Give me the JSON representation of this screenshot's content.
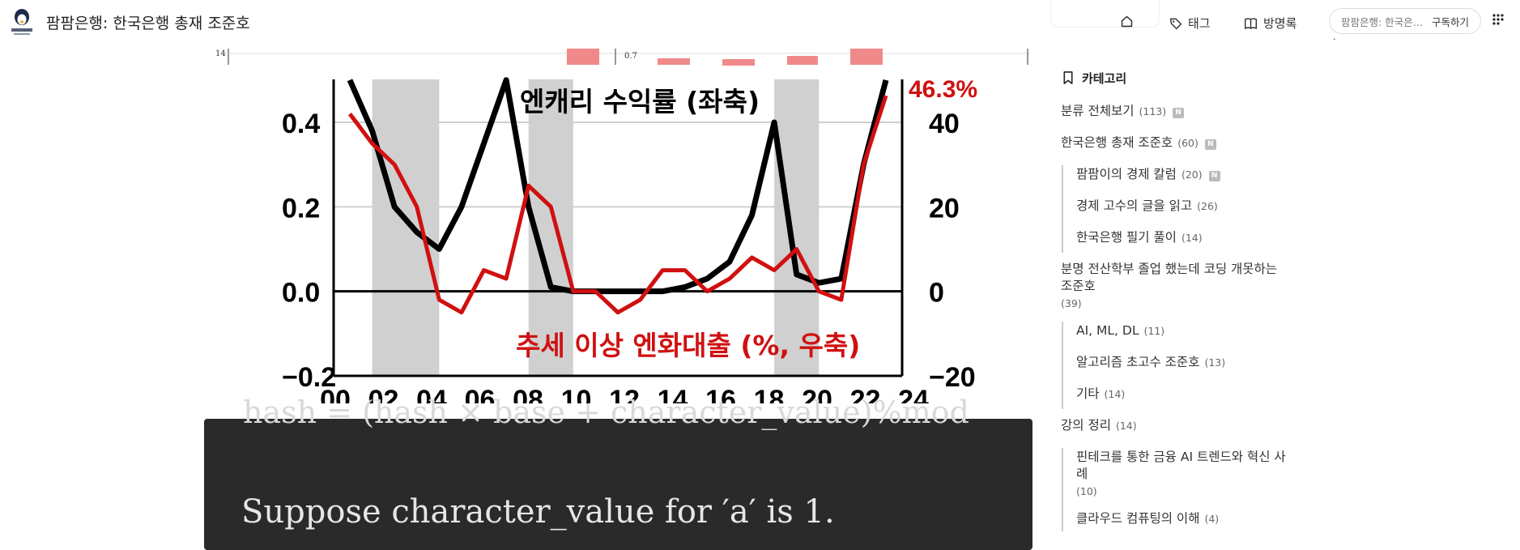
{
  "header": {
    "blog_title": "팜팜은행: 한국은행 총재 조준호",
    "nav": {
      "home_label": "",
      "tag_label": "태그",
      "guestbook_label": "방명록"
    },
    "subscribe": {
      "blog_name": "팜팜은행: 한국은행...",
      "button_label": "구독하기"
    },
    "cut_label": "."
  },
  "top_strip": {
    "tick_left": "14",
    "tick_mid": "0.7"
  },
  "chart": {
    "left_ticks": [
      "0.4",
      "0.2",
      "0.0",
      "−0.2"
    ],
    "right_ticks": [
      "40",
      "20",
      "0",
      "−20"
    ],
    "x_ticks": [
      "00",
      "02",
      "04",
      "06",
      "08",
      "10",
      "12",
      "14",
      "16",
      "18",
      "20",
      "22",
      "24"
    ],
    "label_black": "엔캐리 수익률 (좌축)",
    "label_red": "추세 이상 엔화대출 (%, 우축)",
    "value_annotation": "46.3%"
  },
  "chart_data": {
    "type": "line",
    "x": [
      "00",
      "01",
      "02",
      "03",
      "04",
      "05",
      "06",
      "07",
      "08",
      "09",
      "10",
      "11",
      "12",
      "13",
      "14",
      "15",
      "16",
      "17",
      "18",
      "19",
      "20",
      "21",
      "22",
      "23",
      "24"
    ],
    "series": [
      {
        "values": [
          0.5,
          0.38,
          0.2,
          0.14,
          0.1,
          0.2,
          0.35,
          0.5,
          0.2,
          0.01,
          0.0,
          0.0,
          0.0,
          0.0,
          0.0,
          0.01,
          0.03,
          0.07,
          0.18,
          0.4,
          0.04,
          0.02,
          0.03,
          0.3,
          0.5
        ]
      },
      {
        "values": [
          42,
          35,
          30,
          20,
          -2,
          -5,
          5,
          3,
          25,
          20,
          0,
          0,
          -5,
          -2,
          5,
          5,
          0,
          3,
          8,
          5,
          10,
          0,
          -2,
          30,
          46.3
        ]
      }
    ],
    "ylim_left": [
      -0.2,
      0.4
    ],
    "ylim_right": [
      -20,
      40
    ],
    "shaded_periods": [
      [
        2001,
        2004
      ],
      [
        2008,
        2010
      ],
      [
        2019,
        2021
      ]
    ]
  },
  "code_block": {
    "line_top": "hash = (hash × base + character_value)%mod",
    "line_main": "Suppose character_value for ′a′ is 1."
  },
  "sidebar": {
    "heading": "카테고리",
    "categories": [
      {
        "label": "분류 전체보기",
        "count": "(113)",
        "new": "N"
      },
      {
        "label": "한국은행 총재 조준호",
        "count": "(60)",
        "new": "N"
      },
      {
        "label": "팜팜이의 경제 칼럼",
        "count": "(20)",
        "new": "N"
      },
      {
        "label": "경제 고수의 글을 읽고",
        "count": "(26)"
      },
      {
        "label": "한국은행 필기 풀이",
        "count": "(14)"
      },
      {
        "label_line1": "분명 전산학부 졸업 했는데 코딩 개못하는",
        "label_line2": "조준호",
        "count": "(39)"
      },
      {
        "label": "AI, ML, DL",
        "count": "(11)"
      },
      {
        "label": "알고리즘 초고수 조준호",
        "count": "(13)"
      },
      {
        "label": "기타",
        "count": "(14)"
      },
      {
        "label": "강의 정리",
        "count": "(14)"
      },
      {
        "label_line1": "핀테크를 통한 금융 AI 트렌드와 혁신 사",
        "label_line2": "례",
        "count": "(10)"
      },
      {
        "label": "클라우드 컴퓨팅의 이해",
        "count": "(4)"
      }
    ]
  },
  "colors": {
    "red_series": "#d01010",
    "black_series": "#000000",
    "shade": "#c8c8c8",
    "code_bg": "#2a2a2a",
    "strip_bar": "#f08a8a"
  }
}
